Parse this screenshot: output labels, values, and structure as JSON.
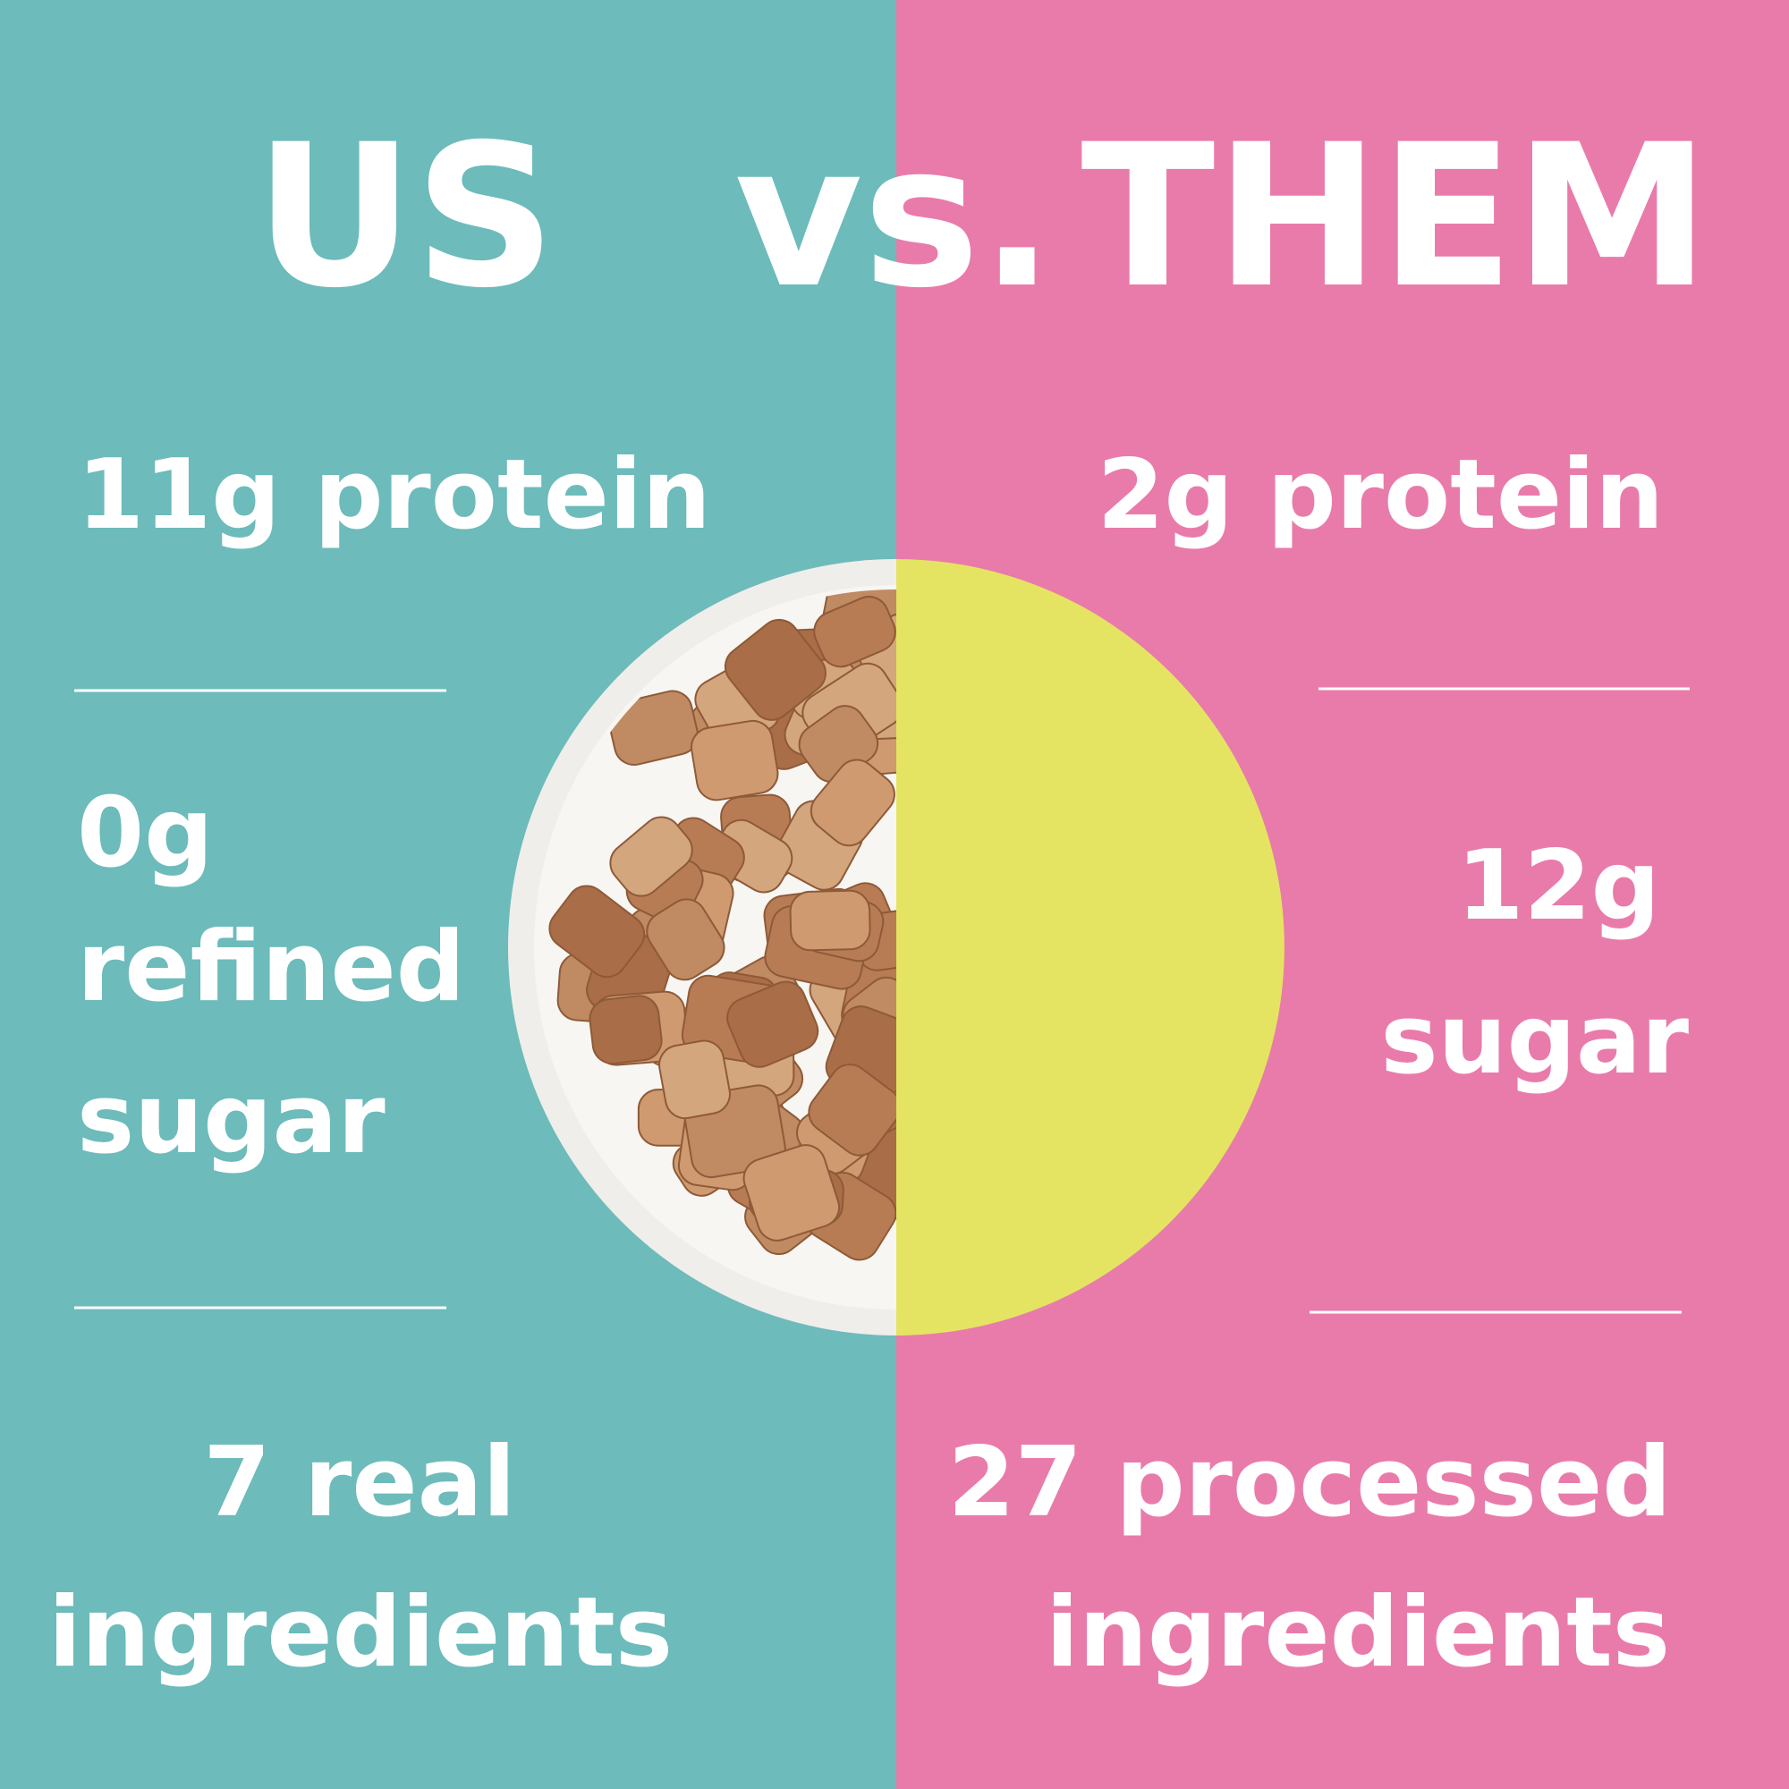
{
  "header": {
    "left_title": "US",
    "vs": "vs.",
    "right_title": "THEM"
  },
  "left": {
    "protein": "11g protein",
    "sugar": [
      "0g",
      "refined",
      "sugar"
    ],
    "ingredients": [
      "7 real",
      "ingredients"
    ]
  },
  "right": {
    "protein": "2g protein",
    "sugar": [
      "12g",
      "sugar"
    ],
    "ingredients": [
      "27 processed",
      "ingredients"
    ]
  }
}
